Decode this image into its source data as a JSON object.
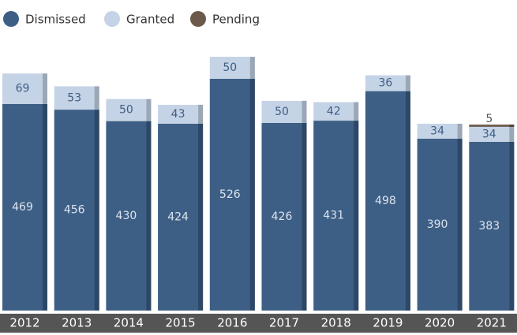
{
  "chart_data": {
    "type": "stacked-bar",
    "categories": [
      "2012",
      "2013",
      "2014",
      "2015",
      "2016",
      "2017",
      "2018",
      "2019",
      "2020",
      "2021"
    ],
    "series": [
      {
        "name": "Dismissed",
        "color": "#3e5f85",
        "values": [
          469,
          456,
          430,
          424,
          526,
          426,
          431,
          498,
          390,
          383
        ]
      },
      {
        "name": "Granted",
        "color": "#c5d3e6",
        "values": [
          69,
          53,
          50,
          43,
          50,
          50,
          42,
          36,
          34,
          34
        ]
      },
      {
        "name": "Pending",
        "color": "#6b5a4a",
        "values": [
          null,
          null,
          null,
          null,
          null,
          null,
          null,
          null,
          null,
          5
        ]
      }
    ],
    "legend": "top-left"
  }
}
